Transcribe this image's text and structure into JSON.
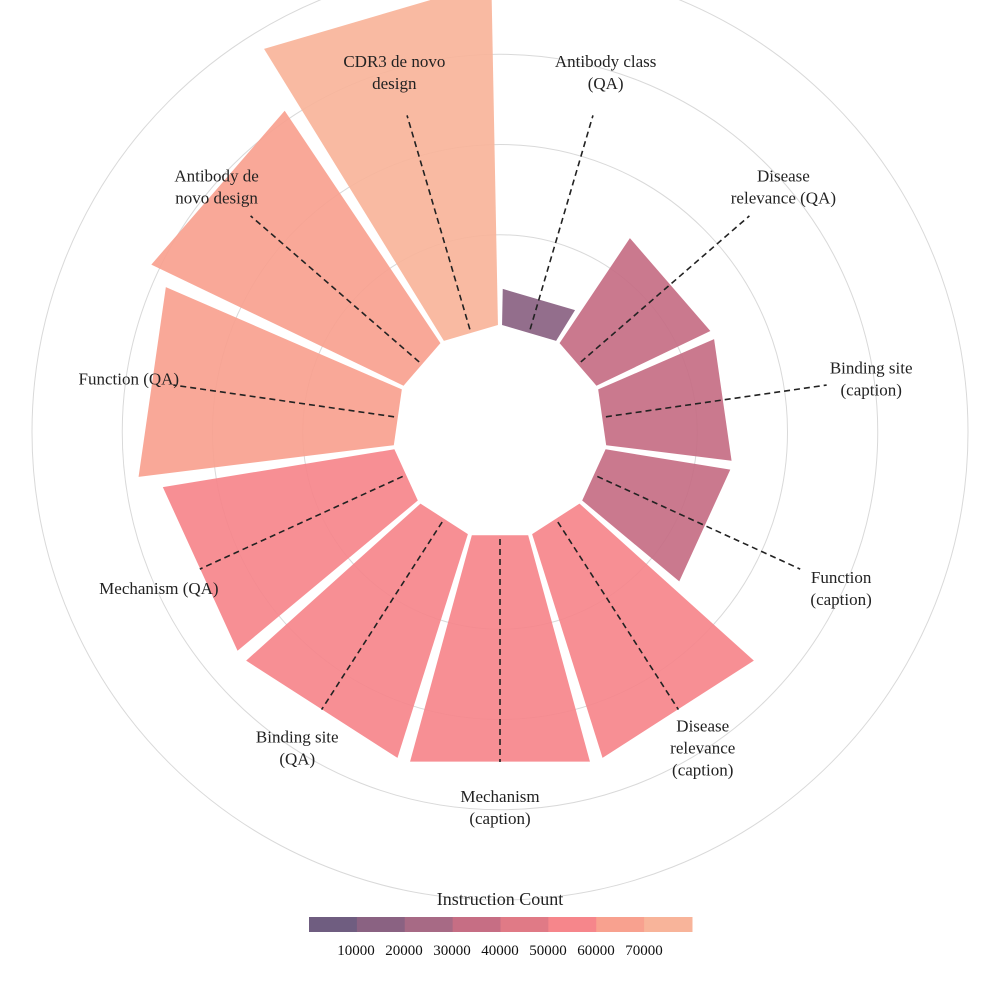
{
  "chart_data": {
    "type": "radial-bar",
    "title": "",
    "categories": [
      "Antibody class (QA)",
      "Disease relevance (QA)",
      "Binding site (caption)",
      "Function (caption)",
      "Disease relevance (caption)",
      "Mechanism (caption)",
      "Binding site (QA)",
      "Mechanism (QA)",
      "Function (QA)",
      "Antibody de novo design",
      "CDR3 de novo design"
    ],
    "label_lines": [
      [
        "Antibody class",
        "(QA)"
      ],
      [
        "Disease",
        "relevance (QA)"
      ],
      [
        "Binding site",
        "(caption)"
      ],
      [
        "Function",
        "(caption)"
      ],
      [
        "Disease",
        "relevance",
        "(caption)"
      ],
      [
        "Mechanism",
        "(caption)"
      ],
      [
        "Binding site",
        "(QA)"
      ],
      [
        "Mechanism (QA)"
      ],
      [
        "Function (QA)"
      ],
      [
        "Antibody de",
        "novo design"
      ],
      [
        "CDR3 de novo",
        "design"
      ]
    ],
    "values": [
      8000,
      28000,
      28000,
      28000,
      52000,
      52000,
      52000,
      52000,
      57000,
      62000,
      76000
    ],
    "radial_range": [
      0,
      80000
    ],
    "grid": true,
    "colorbar": {
      "title": "Instruction Count",
      "tick_labels": [
        "10000",
        "20000",
        "30000",
        "40000",
        "50000",
        "60000",
        "70000"
      ],
      "colors": [
        "#6f5d80",
        "#8a6282",
        "#a76a85",
        "#c66e84",
        "#e07a86",
        "#f6868b",
        "#f8a18f",
        "#f8b49a"
      ]
    }
  }
}
